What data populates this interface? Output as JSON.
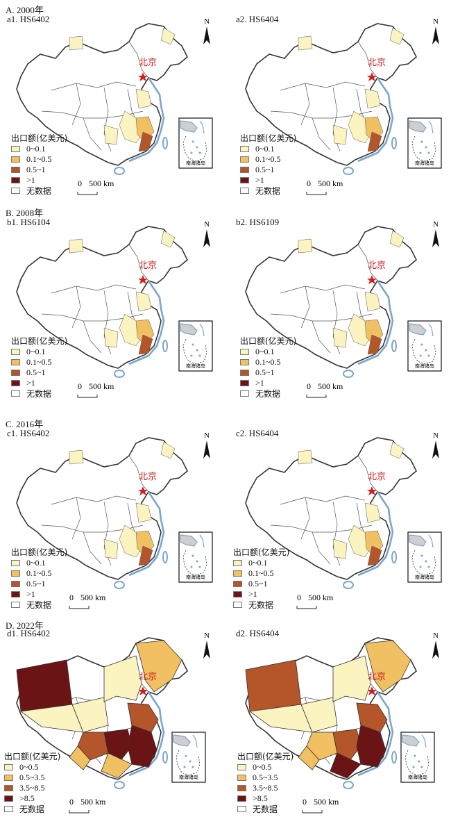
{
  "sections": [
    {
      "label": "A. 2000年",
      "panels": [
        {
          "title": "a1. HS6402",
          "capital": "北京",
          "sea": "南海诸岛",
          "legend": {
            "title": "出口额(亿美元)",
            "classes": [
              {
                "label": "0~0.1",
                "color": "#fbf4c0"
              },
              {
                "label": "0.1~0.5",
                "color": "#f0c062"
              },
              {
                "label": "0.5~1",
                "color": "#b4562a"
              },
              {
                "label": ">1",
                "color": "#6b1416"
              },
              {
                "label": "无数据",
                "color": "#ffffff"
              }
            ]
          },
          "scale": {
            "zero": "0",
            "label": "500 km"
          }
        },
        {
          "title": "a2. HS6404",
          "capital": "北京",
          "sea": "南海诸岛",
          "legend": {
            "title": "出口额(亿美元)",
            "classes": [
              {
                "label": "0~0.1",
                "color": "#fbf4c0"
              },
              {
                "label": "0.1~0.5",
                "color": "#f0c062"
              },
              {
                "label": "0.5~1",
                "color": "#b4562a"
              },
              {
                "label": ">1",
                "color": "#6b1416"
              },
              {
                "label": "无数据",
                "color": "#ffffff"
              }
            ]
          },
          "scale": {
            "zero": "0",
            "label": "500 km"
          }
        }
      ]
    },
    {
      "label": "B. 2008年",
      "panels": [
        {
          "title": "b1. HS6104",
          "capital": "北京",
          "sea": "南海诸岛",
          "legend": {
            "title": "出口额(亿美元)",
            "classes": [
              {
                "label": "0~0.1",
                "color": "#fbf4c0"
              },
              {
                "label": "0.1~0.5",
                "color": "#f0c062"
              },
              {
                "label": "0.5~1",
                "color": "#b4562a"
              },
              {
                "label": ">1",
                "color": "#6b1416"
              },
              {
                "label": "无数据",
                "color": "#ffffff"
              }
            ]
          },
          "scale": {
            "zero": "0",
            "label": "500 km"
          }
        },
        {
          "title": "b2. HS6109",
          "capital": "北京",
          "sea": "南海诸岛",
          "legend": {
            "title": "出口额(亿美元)",
            "classes": [
              {
                "label": "0~0.1",
                "color": "#fbf4c0"
              },
              {
                "label": "0.1~0.5",
                "color": "#f0c062"
              },
              {
                "label": "0.5~1",
                "color": "#b4562a"
              },
              {
                "label": ">1",
                "color": "#6b1416"
              },
              {
                "label": "无数据",
                "color": "#ffffff"
              }
            ]
          },
          "scale": {
            "zero": "0",
            "label": "500 km"
          }
        }
      ]
    },
    {
      "label": "C. 2016年",
      "panels": [
        {
          "title": "c1. HS6402",
          "capital": "北京",
          "sea": "南海诸岛",
          "legend": {
            "title": "出口额(亿美元)",
            "classes": [
              {
                "label": "0~0.1",
                "color": "#fbf4c0"
              },
              {
                "label": "0.1~0.5",
                "color": "#f0c062"
              },
              {
                "label": "0.5~1",
                "color": "#b4562a"
              },
              {
                "label": ">1",
                "color": "#6b1416"
              },
              {
                "label": "无数据",
                "color": "#ffffff"
              }
            ]
          },
          "scale": {
            "zero": "0",
            "label": "500 km"
          }
        },
        {
          "title": "c2. HS6404",
          "capital": "北京",
          "sea": "南海诸岛",
          "legend": {
            "title": "出口额(亿美元)",
            "classes": [
              {
                "label": "0~0.1",
                "color": "#fbf4c0"
              },
              {
                "label": "0.1~0.5",
                "color": "#f0c062"
              },
              {
                "label": "0.5~1",
                "color": "#b4562a"
              },
              {
                "label": ">1",
                "color": "#6b1416"
              },
              {
                "label": "无数据",
                "color": "#ffffff"
              }
            ]
          },
          "scale": {
            "zero": "0",
            "label": "500 km"
          }
        }
      ]
    },
    {
      "label": "D. 2022年",
      "panels": [
        {
          "title": "d1. HS6402",
          "capital": "北京",
          "sea": "南海诸岛",
          "legend": {
            "title": "出口额(亿美元)",
            "classes": [
              {
                "label": "0~0.5",
                "color": "#fbf4c0"
              },
              {
                "label": "0.5~3.5",
                "color": "#f0c062"
              },
              {
                "label": "3.5~8.5",
                "color": "#b4562a"
              },
              {
                "label": ">8.5",
                "color": "#6b1416"
              },
              {
                "label": "无数据",
                "color": "#ffffff"
              }
            ]
          },
          "scale": {
            "zero": "0",
            "label": "500 km"
          }
        },
        {
          "title": "d2. HS6404",
          "capital": "北京",
          "sea": "南海诸岛",
          "legend": {
            "title": "出口额(亿美元)",
            "classes": [
              {
                "label": "0~0.5",
                "color": "#fbf4c0"
              },
              {
                "label": "0.5~3.5",
                "color": "#f0c062"
              },
              {
                "label": "3.5~8.5",
                "color": "#b4562a"
              },
              {
                "label": ">8.5",
                "color": "#6b1416"
              },
              {
                "label": "无数据",
                "color": "#ffffff"
              }
            ]
          },
          "scale": {
            "zero": "0",
            "label": "500 km"
          }
        }
      ]
    }
  ],
  "north_arrow": "N",
  "colors": {
    "coast": "#7aa6cf",
    "border": "#333333",
    "capital": "#d02020"
  }
}
